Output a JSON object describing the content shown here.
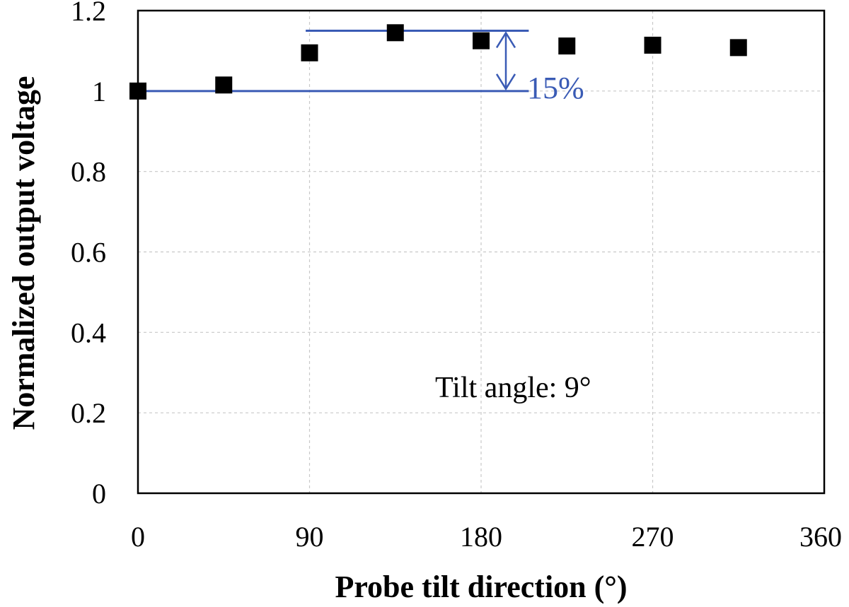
{
  "chart_data": {
    "type": "scatter",
    "title": "",
    "xlabel": "Probe tilt direction (°)",
    "ylabel": "Normalized output voltage",
    "xlim": [
      0,
      360
    ],
    "ylim": [
      0,
      1.2
    ],
    "x_ticks": [
      0,
      90,
      180,
      270,
      360
    ],
    "y_ticks": [
      0,
      0.2,
      0.4,
      0.6,
      0.8,
      1,
      1.2
    ],
    "x_tick_labels": [
      "0",
      "90",
      "180",
      "270",
      "360"
    ],
    "y_tick_labels": [
      "0",
      "0.2",
      "0.4",
      "0.6",
      "0.8",
      "1",
      "1.2"
    ],
    "grid": true,
    "marker": "square",
    "marker_color": "#000000",
    "series": [
      {
        "x": [
          0,
          45,
          90,
          135,
          180,
          225,
          270,
          315
        ],
        "y": [
          1.0,
          1.015,
          1.095,
          1.145,
          1.125,
          1.112,
          1.114,
          1.108
        ]
      }
    ],
    "annotations": {
      "range_label": "15%",
      "range_color": "#3a5bb5",
      "range_low": 1.0,
      "range_high": 1.15,
      "tilt_label": "Tilt angle:  9°"
    }
  }
}
